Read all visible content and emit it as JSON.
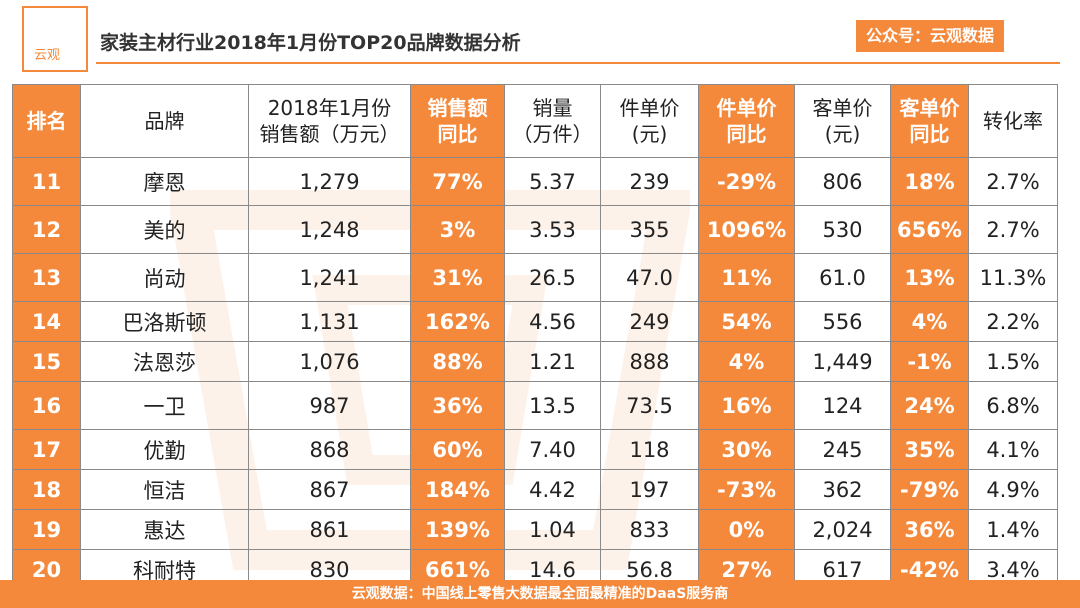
{
  "header": {
    "logo_text": "云观",
    "title": "家装主材行业2018年1月份TOP20品牌数据分析",
    "badge": "公众号：云观数据"
  },
  "table": {
    "columns": [
      {
        "l1": "排名",
        "l2": ""
      },
      {
        "l1": "品牌",
        "l2": ""
      },
      {
        "l1": "2018年1月份",
        "l2": "销售额（万元）"
      },
      {
        "l1": "销售额",
        "l2": "同比"
      },
      {
        "l1": "销量",
        "l2": "（万件）"
      },
      {
        "l1": "件单价",
        "l2": "(元)"
      },
      {
        "l1": "件单价",
        "l2": "同比"
      },
      {
        "l1": "客单价",
        "l2": "(元)"
      },
      {
        "l1": "客单价",
        "l2": "同比"
      },
      {
        "l1": "转化率",
        "l2": ""
      }
    ],
    "rows": [
      [
        "11",
        "摩恩",
        "1,279",
        "77%",
        "5.37",
        "239",
        "-29%",
        "806",
        "18%",
        "2.7%"
      ],
      [
        "12",
        "美的",
        "1,248",
        "3%",
        "3.53",
        "355",
        "1096%",
        "530",
        "656%",
        "2.7%"
      ],
      [
        "13",
        "尚动",
        "1,241",
        "31%",
        "26.5",
        "47.0",
        "11%",
        "61.0",
        "13%",
        "11.3%"
      ],
      [
        "14",
        "巴洛斯顿",
        "1,131",
        "162%",
        "4.56",
        "249",
        "54%",
        "556",
        "4%",
        "2.2%"
      ],
      [
        "15",
        "法恩莎",
        "1,076",
        "88%",
        "1.21",
        "888",
        "4%",
        "1,449",
        "-1%",
        "1.5%"
      ],
      [
        "16",
        "一卫",
        "987",
        "36%",
        "13.5",
        "73.5",
        "16%",
        "124",
        "24%",
        "6.8%"
      ],
      [
        "17",
        "优勤",
        "868",
        "60%",
        "7.40",
        "118",
        "30%",
        "245",
        "35%",
        "4.1%"
      ],
      [
        "18",
        "恒洁",
        "867",
        "184%",
        "4.42",
        "197",
        "-73%",
        "362",
        "-79%",
        "4.9%"
      ],
      [
        "19",
        "惠达",
        "861",
        "139%",
        "1.04",
        "833",
        "0%",
        "2,024",
        "36%",
        "1.4%"
      ],
      [
        "20",
        "科耐特",
        "830",
        "661%",
        "14.6",
        "56.8",
        "27%",
        "617",
        "-42%",
        "3.4%"
      ]
    ]
  },
  "footer": {
    "text": "云观数据：中国线上零售大数据最全面最精准的DaaS服务商"
  },
  "colors": {
    "accent": "#f5893b",
    "border": "#8a8a8a"
  }
}
